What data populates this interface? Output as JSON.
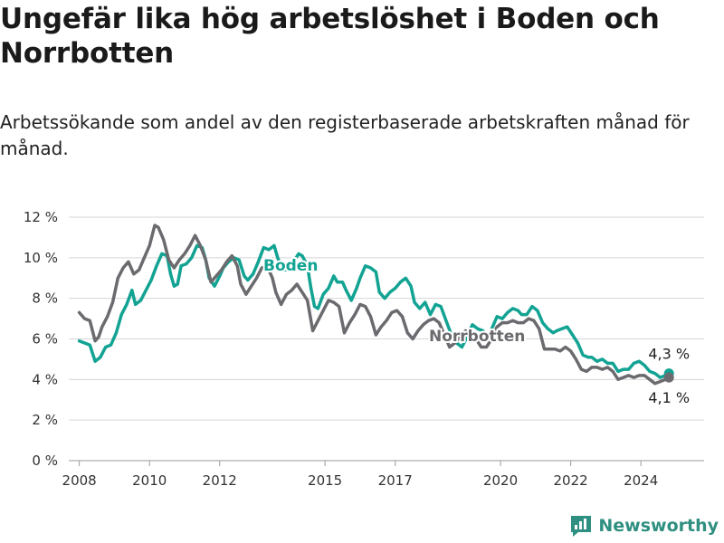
{
  "title": "Ungefär lika hög arbetslöshet i Boden och Norrbotten",
  "subtitle": "Arbetssökande som andel av den registerbaserade arbetskraften månad för månad.",
  "brand": "Newsworthy",
  "colors": {
    "boden": "#12a393",
    "norrbotten": "#6b6b6f",
    "grid": "#d6d6d6",
    "brand": "#2f8f80"
  },
  "chart_data": {
    "type": "line",
    "title": "",
    "xlabel": "",
    "ylabel": "",
    "xlim": [
      2007.7,
      2025.8
    ],
    "ylim": [
      0,
      12
    ],
    "yticks": [
      0,
      2,
      4,
      6,
      8,
      10,
      12
    ],
    "yticklabels": [
      "0 %",
      "2 %",
      "4 %",
      "6 %",
      "8 %",
      "10 %",
      "12 %"
    ],
    "xticks": [
      2008,
      2010,
      2012,
      2015,
      2017,
      2020,
      2022,
      2024
    ],
    "xticklabels": [
      "2008",
      "2010",
      "2012",
      "2015",
      "2017",
      "2020",
      "2022",
      "2024"
    ],
    "grid": "horizontal",
    "series": [
      {
        "name": "Boden",
        "color": "#12a393",
        "end_label": "4,3 %",
        "points": [
          [
            2008.0,
            5.9
          ],
          [
            2008.15,
            5.8
          ],
          [
            2008.3,
            5.7
          ],
          [
            2008.45,
            4.9
          ],
          [
            2008.6,
            5.1
          ],
          [
            2008.75,
            5.6
          ],
          [
            2008.9,
            5.7
          ],
          [
            2009.05,
            6.3
          ],
          [
            2009.2,
            7.2
          ],
          [
            2009.35,
            7.7
          ],
          [
            2009.5,
            8.4
          ],
          [
            2009.6,
            7.7
          ],
          [
            2009.75,
            7.9
          ],
          [
            2009.9,
            8.4
          ],
          [
            2010.05,
            8.9
          ],
          [
            2010.2,
            9.6
          ],
          [
            2010.35,
            10.2
          ],
          [
            2010.5,
            10.1
          ],
          [
            2010.6,
            9.2
          ],
          [
            2010.7,
            8.6
          ],
          [
            2010.8,
            8.7
          ],
          [
            2010.9,
            9.6
          ],
          [
            2011.05,
            9.7
          ],
          [
            2011.2,
            10.0
          ],
          [
            2011.35,
            10.6
          ],
          [
            2011.5,
            10.5
          ],
          [
            2011.6,
            9.9
          ],
          [
            2011.7,
            9.0
          ],
          [
            2011.85,
            8.6
          ],
          [
            2012.0,
            9.1
          ],
          [
            2012.1,
            9.5
          ],
          [
            2012.25,
            9.8
          ],
          [
            2012.4,
            10.0
          ],
          [
            2012.55,
            9.9
          ],
          [
            2012.7,
            9.1
          ],
          [
            2012.8,
            8.9
          ],
          [
            2012.95,
            9.2
          ],
          [
            2013.1,
            9.8
          ],
          [
            2013.25,
            10.5
          ],
          [
            2013.4,
            10.4
          ],
          [
            2013.55,
            10.6
          ],
          [
            2013.65,
            10.0
          ],
          [
            2013.8,
            9.4
          ],
          [
            2013.95,
            9.4
          ],
          [
            2014.1,
            9.8
          ],
          [
            2014.25,
            10.2
          ],
          [
            2014.35,
            10.1
          ],
          [
            2014.5,
            9.6
          ],
          [
            2014.6,
            8.5
          ],
          [
            2014.7,
            7.6
          ],
          [
            2014.8,
            7.5
          ],
          [
            2014.95,
            8.2
          ],
          [
            2015.1,
            8.5
          ],
          [
            2015.25,
            9.1
          ],
          [
            2015.35,
            8.8
          ],
          [
            2015.5,
            8.8
          ],
          [
            2015.6,
            8.4
          ],
          [
            2015.75,
            7.9
          ],
          [
            2015.9,
            8.5
          ],
          [
            2016.0,
            9.0
          ],
          [
            2016.15,
            9.6
          ],
          [
            2016.3,
            9.5
          ],
          [
            2016.45,
            9.3
          ],
          [
            2016.55,
            8.3
          ],
          [
            2016.7,
            8.0
          ],
          [
            2016.85,
            8.3
          ],
          [
            2017.0,
            8.5
          ],
          [
            2017.15,
            8.8
          ],
          [
            2017.3,
            9.0
          ],
          [
            2017.45,
            8.6
          ],
          [
            2017.55,
            7.8
          ],
          [
            2017.7,
            7.5
          ],
          [
            2017.85,
            7.8
          ],
          [
            2018.0,
            7.2
          ],
          [
            2018.15,
            7.7
          ],
          [
            2018.3,
            7.6
          ],
          [
            2018.45,
            6.9
          ],
          [
            2018.6,
            6.2
          ],
          [
            2018.75,
            5.8
          ],
          [
            2018.9,
            5.6
          ],
          [
            2019.05,
            6.1
          ],
          [
            2019.2,
            6.7
          ],
          [
            2019.35,
            6.5
          ],
          [
            2019.5,
            6.4
          ],
          [
            2019.6,
            6.1
          ],
          [
            2019.75,
            6.5
          ],
          [
            2019.9,
            7.1
          ],
          [
            2020.05,
            7.0
          ],
          [
            2020.2,
            7.3
          ],
          [
            2020.35,
            7.5
          ],
          [
            2020.5,
            7.4
          ],
          [
            2020.6,
            7.2
          ],
          [
            2020.75,
            7.2
          ],
          [
            2020.9,
            7.6
          ],
          [
            2021.05,
            7.4
          ],
          [
            2021.2,
            6.8
          ],
          [
            2021.35,
            6.5
          ],
          [
            2021.5,
            6.3
          ],
          [
            2021.6,
            6.4
          ],
          [
            2021.75,
            6.5
          ],
          [
            2021.9,
            6.6
          ],
          [
            2022.05,
            6.2
          ],
          [
            2022.2,
            5.8
          ],
          [
            2022.35,
            5.2
          ],
          [
            2022.5,
            5.1
          ],
          [
            2022.6,
            5.1
          ],
          [
            2022.75,
            4.9
          ],
          [
            2022.9,
            5.0
          ],
          [
            2023.05,
            4.8
          ],
          [
            2023.2,
            4.8
          ],
          [
            2023.35,
            4.4
          ],
          [
            2023.5,
            4.5
          ],
          [
            2023.65,
            4.5
          ],
          [
            2023.8,
            4.8
          ],
          [
            2023.95,
            4.9
          ],
          [
            2024.1,
            4.7
          ],
          [
            2024.25,
            4.4
          ],
          [
            2024.4,
            4.3
          ],
          [
            2024.55,
            4.1
          ],
          [
            2024.7,
            4.2
          ],
          [
            2024.8,
            4.3
          ]
        ]
      },
      {
        "name": "Norrbotten",
        "color": "#6b6b6f",
        "end_label": "4,1 %",
        "points": [
          [
            2008.0,
            7.3
          ],
          [
            2008.15,
            7.0
          ],
          [
            2008.3,
            6.9
          ],
          [
            2008.45,
            5.9
          ],
          [
            2008.55,
            6.1
          ],
          [
            2008.65,
            6.6
          ],
          [
            2008.8,
            7.1
          ],
          [
            2008.95,
            7.8
          ],
          [
            2009.1,
            9.0
          ],
          [
            2009.25,
            9.5
          ],
          [
            2009.4,
            9.8
          ],
          [
            2009.55,
            9.2
          ],
          [
            2009.7,
            9.4
          ],
          [
            2009.85,
            10.0
          ],
          [
            2010.0,
            10.6
          ],
          [
            2010.15,
            11.6
          ],
          [
            2010.25,
            11.5
          ],
          [
            2010.4,
            10.9
          ],
          [
            2010.55,
            9.9
          ],
          [
            2010.7,
            9.5
          ],
          [
            2010.85,
            9.9
          ],
          [
            2011.0,
            10.2
          ],
          [
            2011.15,
            10.6
          ],
          [
            2011.3,
            11.1
          ],
          [
            2011.45,
            10.6
          ],
          [
            2011.6,
            9.9
          ],
          [
            2011.75,
            8.8
          ],
          [
            2011.9,
            9.1
          ],
          [
            2012.05,
            9.4
          ],
          [
            2012.2,
            9.8
          ],
          [
            2012.35,
            10.1
          ],
          [
            2012.5,
            9.6
          ],
          [
            2012.6,
            8.7
          ],
          [
            2012.75,
            8.2
          ],
          [
            2012.9,
            8.6
          ],
          [
            2013.05,
            9.0
          ],
          [
            2013.2,
            9.5
          ],
          [
            2013.35,
            9.6
          ],
          [
            2013.5,
            9.0
          ],
          [
            2013.6,
            8.3
          ],
          [
            2013.75,
            7.7
          ],
          [
            2013.9,
            8.2
          ],
          [
            2014.05,
            8.4
          ],
          [
            2014.2,
            8.7
          ],
          [
            2014.35,
            8.3
          ],
          [
            2014.5,
            7.9
          ],
          [
            2014.65,
            6.4
          ],
          [
            2014.8,
            6.9
          ],
          [
            2014.95,
            7.4
          ],
          [
            2015.1,
            7.9
          ],
          [
            2015.25,
            7.8
          ],
          [
            2015.4,
            7.6
          ],
          [
            2015.55,
            6.3
          ],
          [
            2015.7,
            6.8
          ],
          [
            2015.85,
            7.2
          ],
          [
            2016.0,
            7.7
          ],
          [
            2016.15,
            7.6
          ],
          [
            2016.3,
            7.1
          ],
          [
            2016.45,
            6.2
          ],
          [
            2016.6,
            6.6
          ],
          [
            2016.75,
            6.9
          ],
          [
            2016.9,
            7.3
          ],
          [
            2017.05,
            7.4
          ],
          [
            2017.2,
            7.1
          ],
          [
            2017.35,
            6.3
          ],
          [
            2017.5,
            6.0
          ],
          [
            2017.65,
            6.4
          ],
          [
            2017.8,
            6.7
          ],
          [
            2017.95,
            6.9
          ],
          [
            2018.1,
            7.0
          ],
          [
            2018.25,
            6.8
          ],
          [
            2018.4,
            6.2
          ],
          [
            2018.55,
            5.6
          ],
          [
            2018.7,
            5.8
          ],
          [
            2018.85,
            6.1
          ],
          [
            2019.0,
            6.4
          ],
          [
            2019.15,
            6.3
          ],
          [
            2019.3,
            6.0
          ],
          [
            2019.45,
            5.6
          ],
          [
            2019.6,
            5.6
          ],
          [
            2019.75,
            6.0
          ],
          [
            2019.9,
            6.6
          ],
          [
            2020.05,
            6.8
          ],
          [
            2020.2,
            6.8
          ],
          [
            2020.35,
            6.9
          ],
          [
            2020.5,
            6.8
          ],
          [
            2020.65,
            6.8
          ],
          [
            2020.8,
            7.0
          ],
          [
            2020.95,
            6.9
          ],
          [
            2021.1,
            6.5
          ],
          [
            2021.25,
            5.5
          ],
          [
            2021.4,
            5.5
          ],
          [
            2021.55,
            5.5
          ],
          [
            2021.7,
            5.4
          ],
          [
            2021.85,
            5.6
          ],
          [
            2022.0,
            5.4
          ],
          [
            2022.15,
            5.0
          ],
          [
            2022.3,
            4.5
          ],
          [
            2022.45,
            4.4
          ],
          [
            2022.6,
            4.6
          ],
          [
            2022.75,
            4.6
          ],
          [
            2022.9,
            4.5
          ],
          [
            2023.05,
            4.6
          ],
          [
            2023.2,
            4.4
          ],
          [
            2023.35,
            4.0
          ],
          [
            2023.5,
            4.1
          ],
          [
            2023.65,
            4.2
          ],
          [
            2023.8,
            4.1
          ],
          [
            2023.95,
            4.2
          ],
          [
            2024.1,
            4.2
          ],
          [
            2024.25,
            4.0
          ],
          [
            2024.4,
            3.8
          ],
          [
            2024.55,
            3.9
          ],
          [
            2024.7,
            4.0
          ],
          [
            2024.8,
            4.1
          ]
        ]
      }
    ]
  }
}
